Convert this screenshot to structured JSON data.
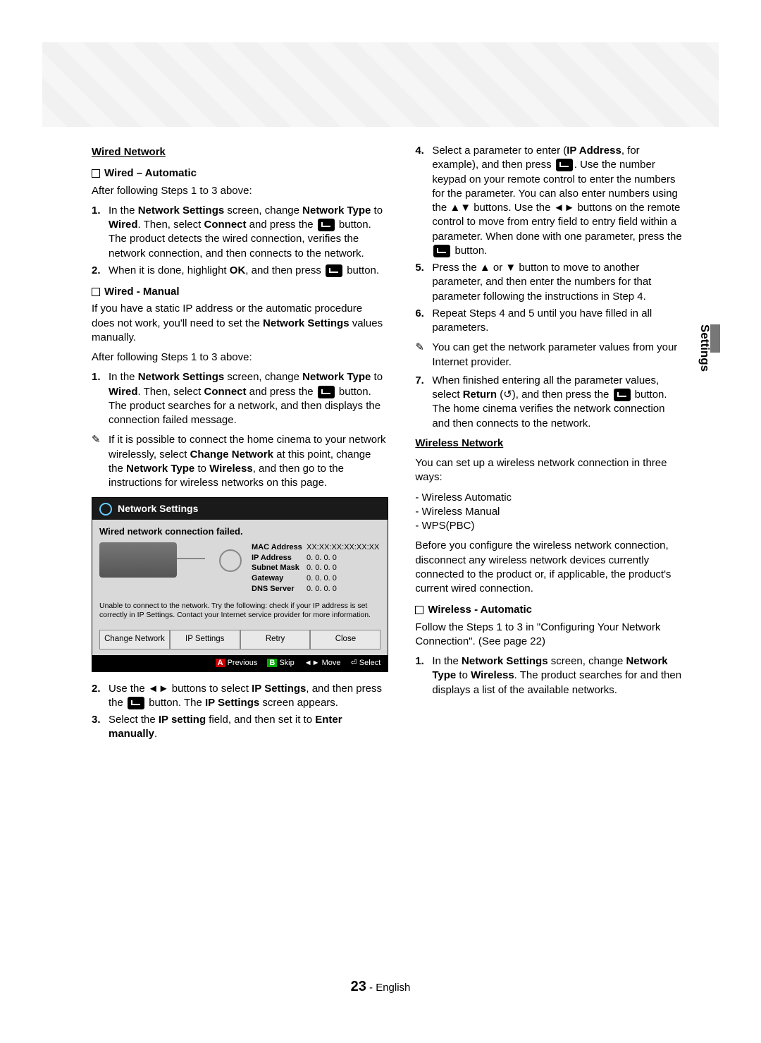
{
  "side_tab": "Settings",
  "page": {
    "number": "23",
    "lang": "English"
  },
  "left": {
    "h_wired": "Wired Network",
    "h_auto": "Wired – Automatic",
    "auto_intro": "After following Steps 1 to 3 above:",
    "auto_s1_a": "In the ",
    "auto_s1_b": "Network Settings",
    "auto_s1_c": " screen, change ",
    "auto_s1_d": "Network Type",
    "auto_s1_e": " to ",
    "auto_s1_f": "Wired",
    "auto_s1_g": ". Then, select ",
    "auto_s1_h": "Connect",
    "auto_s1_i": " and press the ",
    "auto_s1_j": " button. The product detects the wired connection, verifies the network connection, and then connects to the network.",
    "auto_s2_a": "When it is done, highlight ",
    "auto_s2_b": "OK",
    "auto_s2_c": ", and then press ",
    "auto_s2_d": " button.",
    "h_manual": "Wired - Manual",
    "man_p1_a": "If you have a static IP address or the automatic procedure does not work, you'll need to set the ",
    "man_p1_b": "Network Settings",
    "man_p1_c": " values manually.",
    "man_intro": "After following Steps 1 to 3 above:",
    "man_s1_a": "In the ",
    "man_s1_b": "Network Settings",
    "man_s1_c": " screen, change ",
    "man_s1_d": "Network Type",
    "man_s1_e": " to ",
    "man_s1_f": "Wired",
    "man_s1_g": ". Then, select ",
    "man_s1_h": "Connect",
    "man_s1_i": " and press the ",
    "man_s1_j": " button.",
    "man_s1_k": "The product searches for a network, and then displays the connection failed message.",
    "man_note_a": "If it is possible to connect the home cinema to your network wirelessly, select ",
    "man_note_b": "Change Network",
    "man_note_c": " at this point, change the ",
    "man_note_d": "Network Type",
    "man_note_e": " to ",
    "man_note_f": "Wireless",
    "man_note_g": ", and then go to the instructions for wireless networks on this page.",
    "ns": {
      "title": "Network Settings",
      "status": "Wired network connection failed.",
      "rows": [
        {
          "k": "MAC Address",
          "v": "XX:XX:XX:XX:XX:XX"
        },
        {
          "k": "IP Address",
          "v": "0. 0. 0. 0"
        },
        {
          "k": "Subnet Mask",
          "v": "0. 0. 0. 0"
        },
        {
          "k": "Gateway",
          "v": "0. 0. 0. 0"
        },
        {
          "k": "DNS Server",
          "v": "0. 0. 0. 0"
        }
      ],
      "warn": "Unable to connect to the network. Try the following: check if your IP address is set correctly in IP Settings. Contact your Internet service provider for more information.",
      "btns": [
        "Change Network",
        "IP Settings",
        "Retry",
        "Close"
      ],
      "foot": {
        "prev": "Previous",
        "skip": "Skip",
        "move": "Move",
        "select": "Select"
      }
    },
    "post_s2_a": "Use the ◄► buttons to select ",
    "post_s2_b": "IP Settings",
    "post_s2_c": ", and then press the ",
    "post_s2_d": " button. The ",
    "post_s2_e": "IP Settings",
    "post_s2_f": " screen appears.",
    "post_s3_a": "Select the ",
    "post_s3_b": "IP setting",
    "post_s3_c": " field, and then set it to ",
    "post_s3_d": "Enter manually",
    "post_s3_e": "."
  },
  "right": {
    "s4_a": "Select a parameter to enter (",
    "s4_b": "IP Address",
    "s4_c": ", for example), and then press ",
    "s4_d": ". Use the number keypad on your remote control to enter the numbers for the parameter. You can also enter numbers using the ▲▼ buttons. Use the ◄► buttons on the remote control to move from entry field to entry field within a parameter. When done with one parameter, press the ",
    "s4_e": " button.",
    "s5": "Press the ▲ or ▼ button to move to another parameter, and then enter the numbers for that parameter following the instructions in Step 4.",
    "s6": "Repeat Steps 4 and 5 until you have filled in all parameters.",
    "note": "You can get the network parameter values from your Internet provider.",
    "s7_a": "When finished entering all the parameter values, select ",
    "s7_b": "Return",
    "s7_c": " (↺), and then press the ",
    "s7_d": " button. The home cinema verifies the network connection and then connects to the network.",
    "h_wireless": "Wireless Network",
    "w_intro": "You can set up a wireless network connection in three ways:",
    "w_list": [
      "Wireless Automatic",
      "Wireless Manual",
      "WPS(PBC)"
    ],
    "w_para": "Before you configure the wireless network connection, disconnect any wireless network devices currently connected to the product or, if applicable, the product's current wired connection.",
    "h_wauto": "Wireless - Automatic",
    "wa_p": "Follow the Steps 1 to 3 in \"Configuring Your Network Connection\". (See page 22)",
    "wa_s1_a": "In the ",
    "wa_s1_b": "Network Settings",
    "wa_s1_c": " screen, change ",
    "wa_s1_d": "Network Type",
    "wa_s1_e": " to ",
    "wa_s1_f": "Wireless",
    "wa_s1_g": ". The product searches for and then displays a list of the available networks."
  }
}
